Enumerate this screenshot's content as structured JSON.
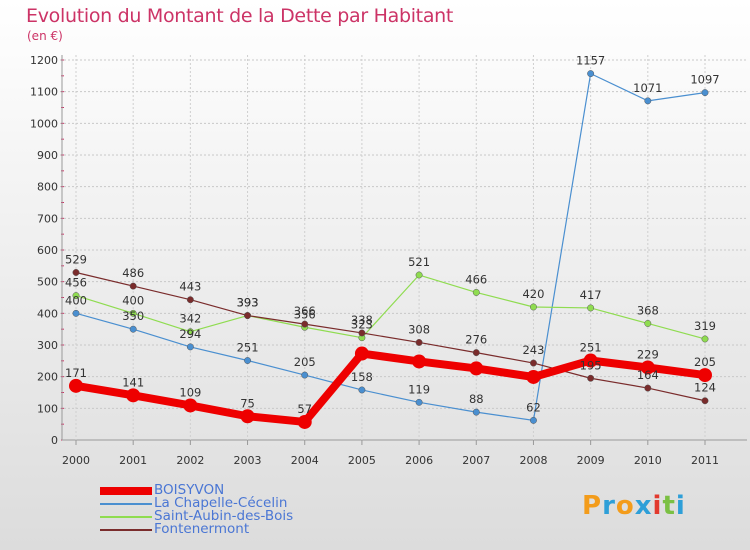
{
  "title": "Evolution du Montant de la Dette par Habitant",
  "subtitle": "(en €)",
  "logo": {
    "letters": [
      "P",
      "r",
      "o",
      "x",
      "i",
      "t",
      "i"
    ],
    "colors": [
      "#f39c1b",
      "#2e9fd8",
      "#f39c1b",
      "#2e9fd8",
      "#e23a2e",
      "#7bc043",
      "#2e9fd8"
    ]
  },
  "chart_data": {
    "type": "line",
    "title": "Evolution du Montant de la Dette par Habitant",
    "ylabel": "(en €)",
    "categories": [
      "2000",
      "2001",
      "2002",
      "2003",
      "2004",
      "2005",
      "2006",
      "2007",
      "2008",
      "2009",
      "2010",
      "2011"
    ],
    "ylim": [
      0,
      1200
    ],
    "yticks": [
      "0",
      "100",
      "200",
      "300",
      "400",
      "500",
      "600",
      "700",
      "800",
      "900",
      "1000",
      "1100",
      "1200"
    ],
    "grid": true,
    "legend_position": "bottom-left",
    "series": [
      {
        "name": "BOISYVON",
        "color": "#ee0000",
        "values": [
          171,
          141,
          109,
          75,
          57,
          273,
          248,
          226,
          199,
          251,
          229,
          205
        ],
        "labels": [
          "171",
          "141",
          "109",
          "75",
          "57",
          "",
          "",
          "",
          "",
          "251",
          "229",
          "205"
        ]
      },
      {
        "name": "La Chapelle-Cécelin",
        "color": "#4a8fd0",
        "values": [
          400,
          350,
          294,
          251,
          205,
          158,
          119,
          88,
          62,
          1157,
          1071,
          1097
        ],
        "labels": [
          "400",
          "350",
          "294",
          "251",
          "205",
          "158",
          "119",
          "88",
          "62",
          "1157",
          "1071",
          "1097"
        ]
      },
      {
        "name": "Saint-Aubin-des-Bois",
        "color": "#8fdc50",
        "values": [
          456,
          400,
          342,
          393,
          356,
          323,
          521,
          466,
          420,
          417,
          368,
          319
        ],
        "labels": [
          "456",
          "400",
          "342",
          "393",
          "356",
          "323",
          "521",
          "466",
          "420",
          "417",
          "368",
          "319"
        ]
      },
      {
        "name": "Fontenermont",
        "color": "#7a2c2c",
        "values": [
          529,
          486,
          443,
          393,
          366,
          338,
          308,
          276,
          243,
          195,
          164,
          124
        ],
        "labels": [
          "529",
          "486",
          "443",
          "393",
          "366",
          "338",
          "308",
          "276",
          "243",
          "195",
          "164",
          "124"
        ]
      }
    ]
  }
}
